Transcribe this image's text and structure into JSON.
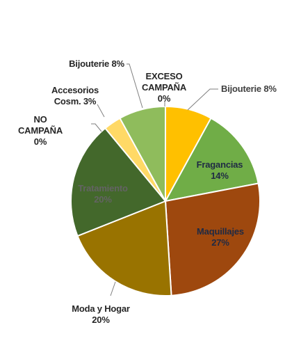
{
  "chart_data": {
    "type": "pie",
    "title": "",
    "slices": [
      {
        "label": "Bijouterie 8%",
        "name": "Bijouterie",
        "value": 8,
        "percent_text": "8%",
        "color": "#FFC000",
        "label_color": "#404040"
      },
      {
        "label": "Fragancias 14%",
        "name": "Fragancias",
        "value": 14,
        "percent_text": "14%",
        "color": "#70AD47",
        "label_color": "#1F2A44"
      },
      {
        "label": "Maquillajes 27%",
        "name": "Maquillajes",
        "value": 27,
        "percent_text": "27%",
        "color": "#9E480E",
        "label_color": "#1F2A44"
      },
      {
        "label": "Moda y Hogar 20%",
        "name": "Moda y Hogar",
        "value": 20,
        "percent_text": "20%",
        "color": "#997300",
        "label_color": "#262626"
      },
      {
        "label": "Tratamiento 20%",
        "name": "Tratamiento",
        "value": 20,
        "percent_text": "20%",
        "color": "#43682B",
        "label_color": "#636363"
      },
      {
        "label": "NO CAMPAÑA 0%",
        "name": "NO CAMPAÑA",
        "value": 0,
        "percent_text": "0%",
        "color": "#A9D18E",
        "label_color": "#262626"
      },
      {
        "label": "Accesorios Cosm. 3%",
        "name": "Accesorios Cosm.",
        "value": 3,
        "percent_text": "3%",
        "color": "#FFD966",
        "label_color": "#262626"
      },
      {
        "label": "Bijouterie 8%",
        "name": "Bijouterie",
        "value": 8,
        "percent_text": "8%",
        "color": "#8FBC5C",
        "label_color": "#262626"
      },
      {
        "label": "EXCESO CAMPAÑA 0%",
        "name": "EXCESO CAMPAÑA",
        "value": 0,
        "percent_text": "0%",
        "color": "#C5E0B4",
        "label_color": "#262626"
      }
    ],
    "start_angle": "12 o'clock",
    "direction": "clockwise",
    "legend": "none"
  }
}
